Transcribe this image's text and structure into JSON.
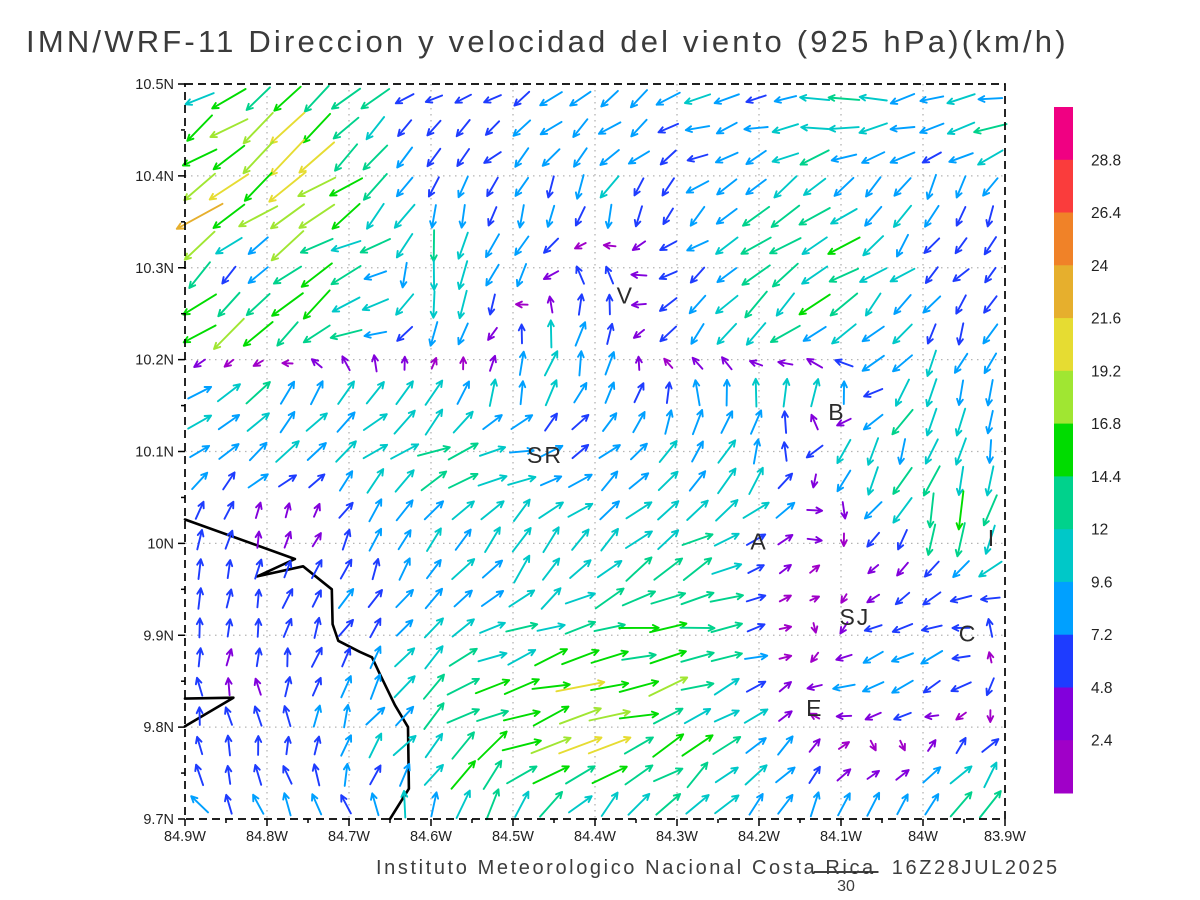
{
  "footer": {
    "institute": "Instituto Meteorologico Nacional Costa Rica",
    "timestamp": "16Z28JUL2025"
  },
  "chart_data": {
    "type": "vector_field",
    "title": "IMN/WRF-11 Direccion y velocidad del viento (925 hPa)(km/h)",
    "units": "km/h",
    "level": "925 hPa",
    "grid": "dotted",
    "x_axis": {
      "ticks": [
        "84.9W",
        "84.8W",
        "84.7W",
        "84.6W",
        "84.5W",
        "84.4W",
        "84.3W",
        "84.2W",
        "84.1W",
        "84W",
        "83.9W"
      ],
      "lon_range": [
        -84.9,
        -83.9
      ]
    },
    "y_axis": {
      "ticks": [
        "10.5N",
        "10.4N",
        "10.3N",
        "10.2N",
        "10.1N",
        "10N",
        "9.9N",
        "9.8N",
        "9.7N"
      ],
      "lat_range": [
        9.7,
        10.5
      ]
    },
    "colorbar": {
      "levels": [
        2.4,
        4.8,
        7.2,
        9.6,
        12,
        14.4,
        16.8,
        19.2,
        21.6,
        24,
        26.4,
        28.8
      ],
      "colors": [
        "#a000c8",
        "#8200dc",
        "#1e3cff",
        "#00a0ff",
        "#00c8c8",
        "#00d28c",
        "#00dc00",
        "#a0e632",
        "#e6dc32",
        "#e6af2d",
        "#f08228",
        "#fa3c3c",
        "#f00082"
      ]
    },
    "reference": {
      "speed": 30,
      "label": "30"
    },
    "stations": [
      {
        "label": "V",
        "lon": -84.363,
        "lat": 10.27
      },
      {
        "label": "SR",
        "lon": -84.461,
        "lat": 10.096
      },
      {
        "label": "B",
        "lon": -84.105,
        "lat": 10.143
      },
      {
        "label": "A",
        "lon": -84.2,
        "lat": 10.002
      },
      {
        "label": "SJ",
        "lon": -84.083,
        "lat": 9.92
      },
      {
        "label": "I",
        "lon": -83.916,
        "lat": 10.006
      },
      {
        "label": "C",
        "lon": -83.945,
        "lat": 9.902
      },
      {
        "label": "E",
        "lon": -84.132,
        "lat": 9.821
      }
    ],
    "coastline": [
      [
        [
          -84.9,
          10.026
        ],
        [
          -84.766,
          9.983
        ],
        [
          -84.812,
          9.964
        ],
        [
          -84.756,
          9.975
        ],
        [
          -84.721,
          9.95
        ],
        [
          -84.72,
          9.912
        ],
        [
          -84.713,
          9.894
        ],
        [
          -84.687,
          9.882
        ],
        [
          -84.672,
          9.876
        ],
        [
          -84.662,
          9.857
        ],
        [
          -84.644,
          9.824
        ],
        [
          -84.628,
          9.8
        ],
        [
          -84.627,
          9.733
        ],
        [
          -84.65,
          9.7
        ]
      ],
      [
        [
          -84.9,
          9.831
        ],
        [
          -84.841,
          9.832
        ],
        [
          -84.9,
          9.801
        ]
      ]
    ],
    "wind_grid": {
      "comment": "u = eastward, v = northward, km/h; rows ordered north (10.5N) to south (9.7N)",
      "lons": [
        -84.9,
        -84.829,
        -84.757,
        -84.686,
        -84.614,
        -84.543,
        -84.471,
        -84.4,
        -84.329,
        -84.257,
        -84.186,
        -84.114,
        -84.043,
        -83.971,
        -83.9
      ],
      "lats": [
        10.5,
        10.433,
        10.367,
        10.3,
        10.233,
        10.167,
        10.1,
        10.033,
        9.967,
        9.9,
        9.833,
        9.767,
        9.7
      ],
      "u": [
        [
          -11,
          -12,
          -13,
          -11,
          -5,
          -4,
          -6,
          -7,
          -8,
          -9,
          -6,
          -11,
          -10,
          -9,
          -9
        ],
        [
          -12,
          -14,
          -14,
          -12,
          -4,
          -5,
          -7,
          -7,
          -6,
          -6,
          -8,
          -11,
          -10,
          -7,
          -14
        ],
        [
          -18,
          -15,
          -14,
          -12,
          -3,
          -2,
          -2,
          -3,
          -2,
          -7,
          -9,
          -11,
          -4,
          -2,
          -2
        ],
        [
          -15,
          -2,
          -14,
          -10,
          -2,
          -3,
          -6,
          0,
          -5,
          -7,
          -10,
          -11,
          -8,
          -4,
          -4
        ],
        [
          -15,
          -14,
          -12,
          -12,
          -3,
          -3,
          1,
          2,
          -4,
          -6,
          -9,
          -10,
          -6,
          -3,
          -3
        ],
        [
          8,
          9,
          7,
          5,
          4,
          2,
          3,
          4,
          1,
          0,
          2,
          1,
          -9,
          -3,
          -2
        ],
        [
          6,
          7,
          8,
          9,
          10,
          12,
          8,
          6,
          6,
          5,
          3,
          -8,
          -3,
          -3,
          -2
        ],
        [
          3,
          2,
          1,
          4,
          6,
          7,
          7,
          8,
          8,
          9,
          8,
          3,
          -8,
          -2,
          -3
        ],
        [
          1,
          1,
          2,
          3,
          5,
          6,
          7,
          8,
          10,
          13,
          2,
          1,
          -2,
          -6,
          -12
        ],
        [
          1,
          1,
          2,
          4,
          6,
          9,
          12,
          14,
          15,
          16,
          3,
          -1,
          -6,
          -8,
          4
        ],
        [
          -1,
          -1,
          0,
          4,
          8,
          12,
          18,
          19,
          16,
          12,
          6,
          -7,
          -8,
          -6,
          -3
        ],
        [
          -2,
          -1,
          0,
          3,
          9,
          12,
          15,
          16,
          13,
          9,
          6,
          4,
          2,
          5,
          7
        ],
        [
          -5,
          -4,
          -4,
          -3,
          -2,
          2,
          4,
          7,
          8,
          7,
          5,
          4,
          6,
          7,
          5
        ]
      ],
      "v": [
        [
          -8,
          -8,
          -9,
          -7,
          -2,
          -3,
          -4,
          -5,
          -5,
          -2,
          -1,
          1,
          -1,
          -2,
          -2
        ],
        [
          -9,
          -11,
          -12,
          -10,
          -4,
          -4,
          -6,
          -6,
          -5,
          -2,
          -2,
          -2,
          -2,
          -4,
          -3
        ],
        [
          -14,
          -12,
          -11,
          -10,
          -9,
          -6,
          -6,
          -11,
          -5,
          -6,
          -7,
          -8,
          -9,
          -8,
          -6
        ],
        [
          -13,
          -2,
          -12,
          -2,
          -13,
          -10,
          -8,
          8,
          -1,
          -5,
          -8,
          -8,
          -6,
          -4,
          -4
        ],
        [
          -12,
          -11,
          -10,
          1,
          -9,
          -9,
          10,
          10,
          -6,
          -8,
          -9,
          -9,
          -7,
          -6,
          -7
        ],
        [
          6,
          7,
          8,
          9,
          10,
          11,
          9,
          8,
          6,
          12,
          8,
          13,
          -8,
          -10,
          -9
        ],
        [
          5,
          6,
          7,
          7,
          6,
          4,
          2,
          5,
          6,
          8,
          10,
          -9,
          -11,
          -9,
          -8
        ],
        [
          5,
          5,
          2,
          6,
          7,
          7,
          7,
          7,
          7,
          7,
          6,
          -3,
          -8,
          -16,
          -14
        ],
        [
          6,
          6,
          6,
          7,
          8,
          8,
          8,
          8,
          8,
          5,
          2,
          1,
          -2,
          -5,
          -4
        ],
        [
          5,
          5,
          5,
          6,
          7,
          6,
          4,
          3,
          3,
          2,
          1,
          -2,
          -3,
          -3,
          9
        ],
        [
          5,
          5,
          6,
          7,
          8,
          6,
          5,
          3,
          4,
          5,
          3,
          -2,
          -2,
          -3,
          -8
        ],
        [
          6,
          6,
          6,
          7,
          9,
          9,
          8,
          6,
          7,
          8,
          6,
          4,
          -3,
          6,
          8
        ],
        [
          6,
          6,
          6,
          7,
          9,
          12,
          11,
          10,
          9,
          9,
          9,
          8,
          9,
          10,
          11
        ]
      ]
    }
  }
}
